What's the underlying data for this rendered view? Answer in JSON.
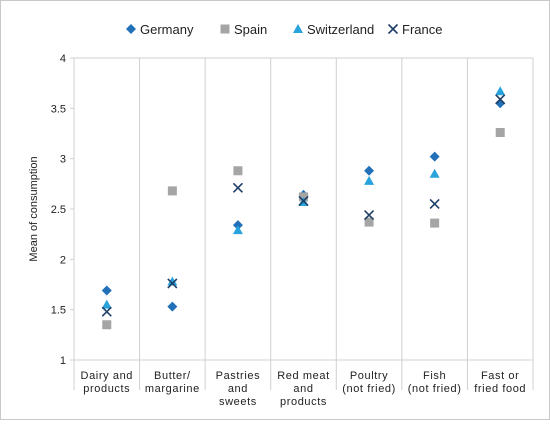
{
  "chart_data": {
    "type": "scatter",
    "title": "",
    "xlabel": "",
    "ylabel": "Mean of consumption",
    "ylim": [
      1,
      4
    ],
    "yticks": [
      "1",
      "1.5",
      "2",
      "2.5",
      "3",
      "3.5",
      "4"
    ],
    "grid": "vertical category separators",
    "legend_position": "top",
    "categories": [
      [
        "Dairy and",
        "products"
      ],
      [
        "Butter/",
        "margarine"
      ],
      [
        "Pastries",
        "and",
        "sweets"
      ],
      [
        "Red meat",
        "and",
        "products"
      ],
      [
        "Poultry",
        "(not fried)"
      ],
      [
        "Fish",
        "(not fried)"
      ],
      [
        "Fast or",
        "fried food"
      ]
    ],
    "series": [
      {
        "name": "Germany",
        "marker": "diamond-icon",
        "color": "#2271b8",
        "values": [
          1.69,
          1.53,
          2.34,
          2.64,
          2.88,
          3.02,
          3.55
        ]
      },
      {
        "name": "Spain",
        "marker": "square-icon",
        "color": "#a5a5a5",
        "values": [
          1.35,
          2.68,
          2.88,
          2.62,
          2.37,
          2.36,
          3.26
        ]
      },
      {
        "name": "Switzerland",
        "marker": "triangle-icon",
        "color": "#29a3dc",
        "values": [
          1.55,
          1.78,
          2.29,
          2.57,
          2.78,
          2.85,
          3.67
        ]
      },
      {
        "name": "France",
        "marker": "x-icon",
        "color": "#1f3f66",
        "values": [
          1.48,
          1.76,
          2.71,
          2.58,
          2.44,
          2.55,
          3.59
        ]
      }
    ]
  }
}
